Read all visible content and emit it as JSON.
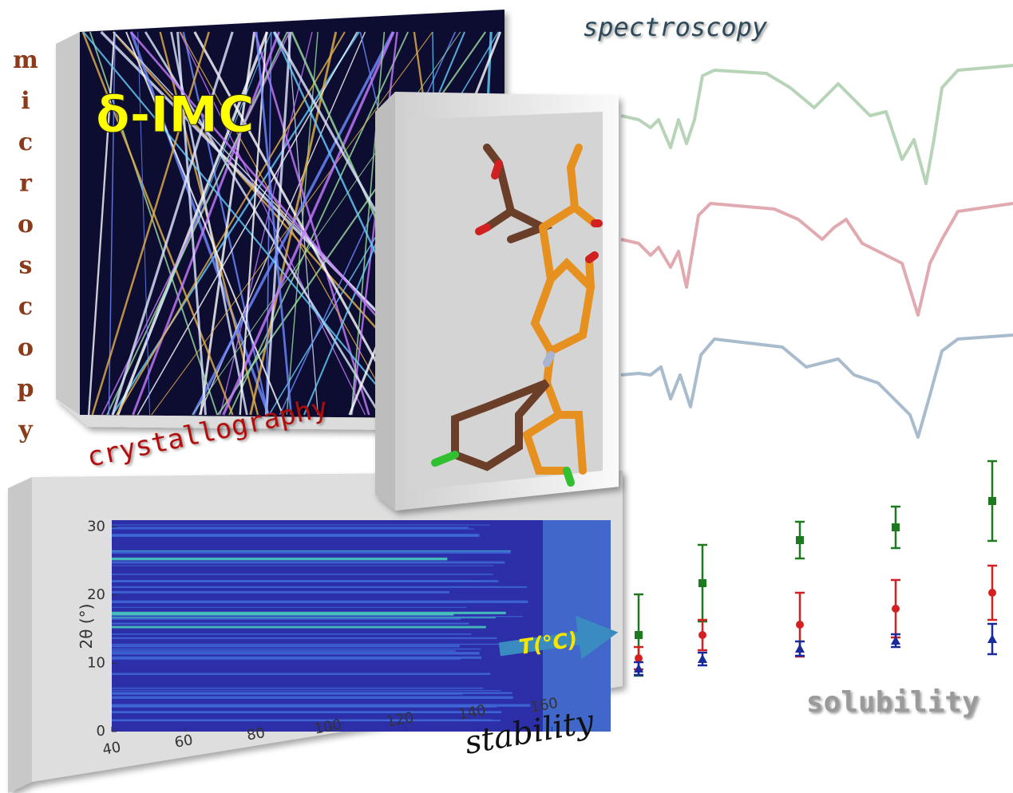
{
  "microscopy": [
    "m",
    "i",
    "c",
    "r",
    "o",
    "s",
    "c",
    "o",
    "p",
    "y"
  ],
  "photo_label": "δ-IMC",
  "spectroscopy": "spectroscopy",
  "crystallography": "crystallography",
  "stability": "stability",
  "solubility": "solubility",
  "stability_plot": {
    "ylabel": "2θ (°)",
    "arrow_label": "T(°C)",
    "xticks": [
      40,
      60,
      80,
      100,
      120,
      140,
      160
    ],
    "xlim": [
      40,
      176
    ],
    "yticks": [
      0,
      10,
      20,
      30
    ],
    "ylim": [
      0,
      31
    ]
  },
  "solubility_plot": {
    "series": [
      {
        "color": "#1e7a1e",
        "marker": "square",
        "values": [
          7.4,
          13.9,
          19.3,
          20.9,
          24.2
        ],
        "errors": [
          5.1,
          4.8,
          2.3,
          2.6,
          5.0
        ]
      },
      {
        "color": "#d42020",
        "marker": "circle",
        "values": [
          4.5,
          7.4,
          8.7,
          10.7,
          12.7
        ],
        "errors": [
          1.4,
          1.9,
          4.0,
          3.6,
          3.4
        ]
      },
      {
        "color": "#1a2a9a",
        "marker": "triangle",
        "values": [
          3.2,
          4.4,
          5.7,
          6.7,
          6.9
        ],
        "errors": [
          0.8,
          0.8,
          0.9,
          0.8,
          1.9
        ]
      }
    ]
  }
}
